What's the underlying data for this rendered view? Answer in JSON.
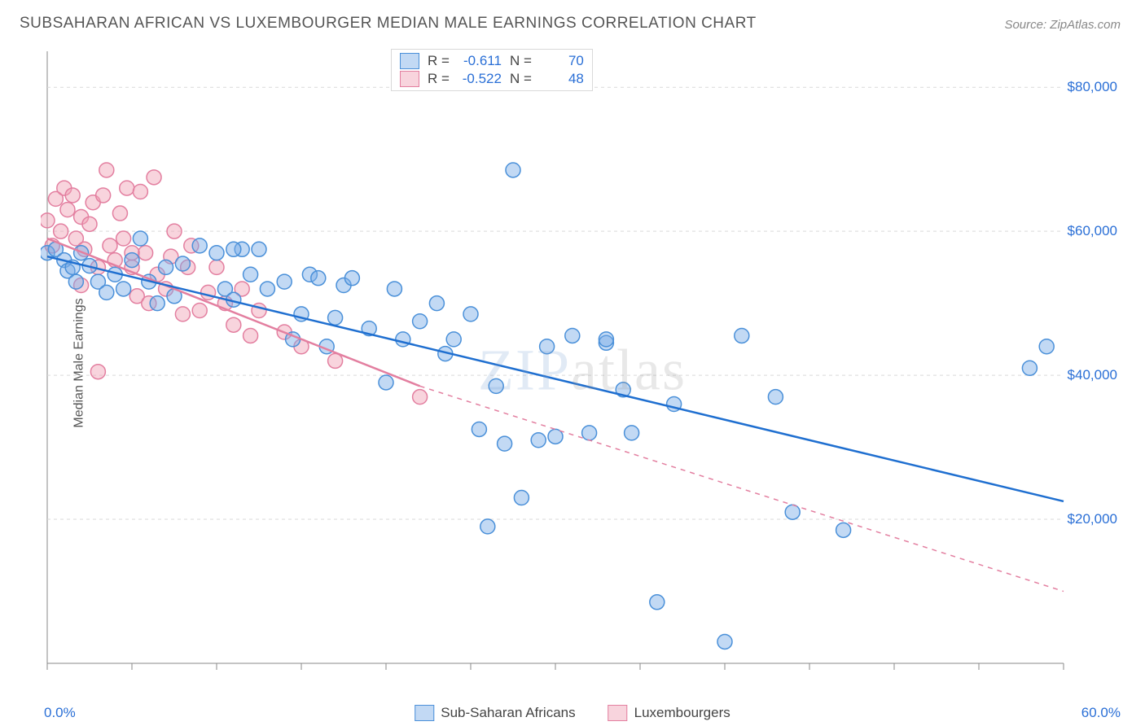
{
  "title": "SUBSAHARAN AFRICAN VS LUXEMBOURGER MEDIAN MALE EARNINGS CORRELATION CHART",
  "source": "Source: ZipAtlas.com",
  "watermark_a": "ZIP",
  "watermark_b": "atlas",
  "ylabel": "Median Male Earnings",
  "chart": {
    "type": "scatter",
    "xlim": [
      0,
      60
    ],
    "ylim": [
      0,
      85000
    ],
    "x_ticks": [
      0,
      5,
      10,
      15,
      20,
      25,
      30,
      35,
      40,
      45,
      50,
      55,
      60
    ],
    "x_tick_labels_shown": {
      "0": "0.0%",
      "60": "60.0%"
    },
    "y_gridlines": [
      20000,
      40000,
      60000,
      80000
    ],
    "y_tick_labels": {
      "20000": "$20,000",
      "40000": "$40,000",
      "60000": "$60,000",
      "80000": "$80,000"
    },
    "grid_color": "#d9d9d9",
    "axis_color": "#888888",
    "background_color": "#ffffff",
    "marker_radius": 9,
    "marker_stroke_width": 1.5,
    "trend_line_width": 2.5,
    "series": [
      {
        "name": "Sub-Saharan Africans",
        "marker_fill": "rgba(120,170,230,0.45)",
        "marker_stroke": "#4a90d9",
        "line_color": "#1f6fd0",
        "r": "-0.611",
        "n": "70",
        "trend": {
          "x1": 0,
          "y1": 56500,
          "x2": 60,
          "y2": 22500,
          "dash": ""
        },
        "points": [
          [
            0,
            57000
          ],
          [
            0.5,
            57500
          ],
          [
            1,
            56000
          ],
          [
            1.2,
            54500
          ],
          [
            1.5,
            55000
          ],
          [
            1.7,
            53000
          ],
          [
            2,
            57000
          ],
          [
            2.5,
            55200
          ],
          [
            3,
            53000
          ],
          [
            3.5,
            51500
          ],
          [
            4,
            54000
          ],
          [
            4.5,
            52000
          ],
          [
            5,
            56000
          ],
          [
            5.5,
            59000
          ],
          [
            6,
            53000
          ],
          [
            6.5,
            50000
          ],
          [
            7,
            55000
          ],
          [
            7.5,
            51000
          ],
          [
            8,
            55500
          ],
          [
            9,
            58000
          ],
          [
            10,
            57000
          ],
          [
            10.5,
            52000
          ],
          [
            11,
            50500
          ],
          [
            11.5,
            57500
          ],
          [
            12,
            54000
          ],
          [
            12.5,
            57500
          ],
          [
            13,
            52000
          ],
          [
            14,
            53000
          ],
          [
            14.5,
            45000
          ],
          [
            15,
            48500
          ],
          [
            15.5,
            54000
          ],
          [
            16,
            53500
          ],
          [
            16.5,
            44000
          ],
          [
            17,
            48000
          ],
          [
            17.5,
            52500
          ],
          [
            18,
            53500
          ],
          [
            19,
            46500
          ],
          [
            20,
            39000
          ],
          [
            20.5,
            52000
          ],
          [
            21,
            45000
          ],
          [
            22,
            47500
          ],
          [
            23,
            50000
          ],
          [
            23.5,
            43000
          ],
          [
            24,
            45000
          ],
          [
            25,
            48500
          ],
          [
            25.5,
            32500
          ],
          [
            26,
            19000
          ],
          [
            26.5,
            38500
          ],
          [
            27,
            30500
          ],
          [
            27.5,
            68500
          ],
          [
            28,
            23000
          ],
          [
            29,
            31000
          ],
          [
            29.5,
            44000
          ],
          [
            30,
            31500
          ],
          [
            31,
            45500
          ],
          [
            32,
            32000
          ],
          [
            33,
            44500
          ],
          [
            34,
            38000
          ],
          [
            34.5,
            32000
          ],
          [
            36,
            8500
          ],
          [
            37,
            36000
          ],
          [
            40,
            3000
          ],
          [
            41,
            45500
          ],
          [
            43,
            37000
          ],
          [
            44,
            21000
          ],
          [
            47,
            18500
          ],
          [
            58,
            41000
          ],
          [
            59,
            44000
          ],
          [
            33,
            45000
          ],
          [
            11,
            57500
          ]
        ]
      },
      {
        "name": "Luxembourgers",
        "marker_fill": "rgba(240,160,180,0.45)",
        "marker_stroke": "#e37fa0",
        "line_color": "#e37fa0",
        "r": "-0.522",
        "n": "48",
        "trend_solid": {
          "x1": 0,
          "y1": 59000,
          "x2": 22,
          "y2": 38500
        },
        "trend_dash": {
          "x1": 22,
          "y1": 38500,
          "x2": 60,
          "y2": 10000
        },
        "points": [
          [
            0,
            61500
          ],
          [
            0.3,
            58000
          ],
          [
            0.5,
            64500
          ],
          [
            0.8,
            60000
          ],
          [
            1,
            66000
          ],
          [
            1.2,
            63000
          ],
          [
            1.5,
            65000
          ],
          [
            1.7,
            59000
          ],
          [
            2,
            62000
          ],
          [
            2.2,
            57500
          ],
          [
            2.5,
            61000
          ],
          [
            2.7,
            64000
          ],
          [
            3,
            55000
          ],
          [
            3.3,
            65000
          ],
          [
            3.5,
            68500
          ],
          [
            3.7,
            58000
          ],
          [
            4,
            56000
          ],
          [
            4.3,
            62500
          ],
          [
            4.5,
            59000
          ],
          [
            4.7,
            66000
          ],
          [
            5,
            55000
          ],
          [
            5.3,
            51000
          ],
          [
            5.5,
            65500
          ],
          [
            5.8,
            57000
          ],
          [
            6,
            50000
          ],
          [
            6.3,
            67500
          ],
          [
            6.5,
            54000
          ],
          [
            7,
            52000
          ],
          [
            7.3,
            56500
          ],
          [
            7.5,
            60000
          ],
          [
            8,
            48500
          ],
          [
            8.3,
            55000
          ],
          [
            8.5,
            58000
          ],
          [
            9,
            49000
          ],
          [
            9.5,
            51500
          ],
          [
            2,
            52500
          ],
          [
            3,
            40500
          ],
          [
            10,
            55000
          ],
          [
            10.5,
            50000
          ],
          [
            11,
            47000
          ],
          [
            11.5,
            52000
          ],
          [
            12,
            45500
          ],
          [
            12.5,
            49000
          ],
          [
            14,
            46000
          ],
          [
            15,
            44000
          ],
          [
            17,
            42000
          ],
          [
            22,
            37000
          ],
          [
            5,
            57000
          ]
        ]
      }
    ]
  },
  "legend": {
    "series1": "Sub-Saharan Africans",
    "series2": "Luxembourgers"
  },
  "stats_labels": {
    "r": "R =",
    "n": "N ="
  }
}
